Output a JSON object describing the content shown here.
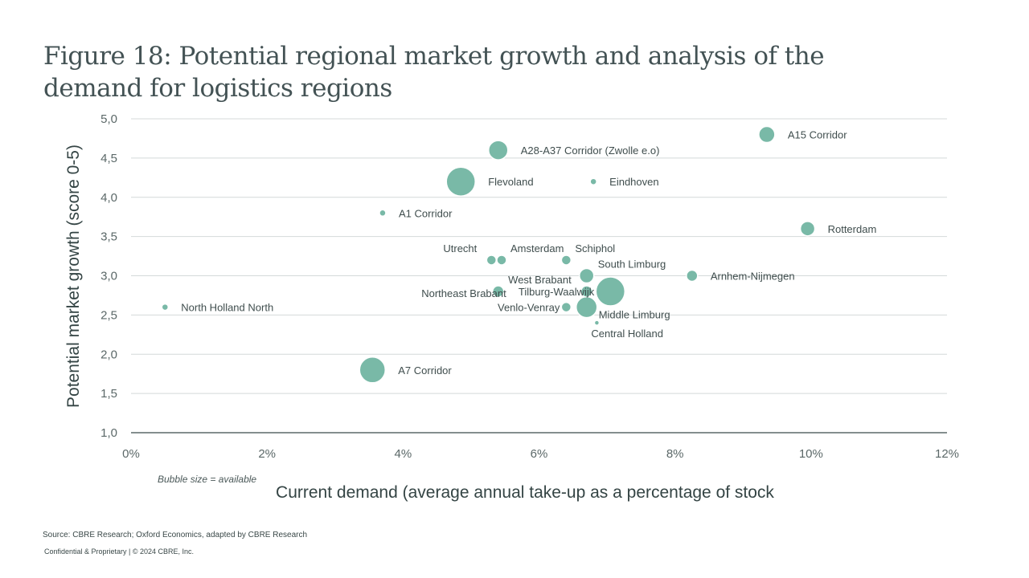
{
  "title": "Figure 18: Potential regional market growth and analysis of the demand for logistics regions",
  "bubble_note": "Bubble size = available",
  "source": "Source: CBRE Research; Oxford Economics, adapted by CBRE Research",
  "confidential": "Confidential & Proprietary | © 2024 CBRE, Inc.",
  "colors": {
    "bubble": "#79b9a7",
    "grid": "#d4d9d9",
    "axis": "#3a4a4a"
  },
  "chart_data": {
    "type": "scatter",
    "title": "Figure 18: Potential regional market growth and analysis of the demand for logistics regions",
    "xlabel": "Current demand (average annual take-up as a percentage of stock",
    "ylabel": "Potential market growth (score 0-5)",
    "xlim": [
      0,
      12
    ],
    "ylim": [
      1.0,
      5.0
    ],
    "x_ticks": [
      0,
      2,
      4,
      6,
      8,
      10,
      12
    ],
    "x_tick_labels": [
      "0%",
      "2%",
      "4%",
      "6%",
      "8%",
      "10%",
      "12%"
    ],
    "y_ticks": [
      1.0,
      1.5,
      2.0,
      2.5,
      3.0,
      3.5,
      4.0,
      4.5,
      5.0
    ],
    "y_tick_labels": [
      "1,0",
      "1,5",
      "2,0",
      "2,5",
      "3,0",
      "3,5",
      "4,0",
      "4,5",
      "5,0"
    ],
    "size_legend": "Bubble size = available",
    "points": [
      {
        "name": "A15 Corridor",
        "x": 9.35,
        "y": 4.8,
        "size": 10,
        "label_pos": "right"
      },
      {
        "name": "A28-A37 Corridor (Zwolle e.o)",
        "x": 5.4,
        "y": 4.6,
        "size": 12,
        "label_pos": "right"
      },
      {
        "name": "Flevoland",
        "x": 4.85,
        "y": 4.2,
        "size": 18,
        "label_pos": "right"
      },
      {
        "name": "Eindhoven",
        "x": 6.8,
        "y": 4.2,
        "size": 4,
        "label_pos": "right"
      },
      {
        "name": "A1 Corridor",
        "x": 3.7,
        "y": 3.8,
        "size": 4,
        "label_pos": "right"
      },
      {
        "name": "Rotterdam",
        "x": 9.95,
        "y": 3.6,
        "size": 9,
        "label_pos": "right"
      },
      {
        "name": "Utrecht",
        "x": 5.3,
        "y": 3.2,
        "size": 6,
        "label_pos": "above-left"
      },
      {
        "name": "Amsterdam",
        "x": 5.45,
        "y": 3.2,
        "size": 6,
        "label_pos": "above-right"
      },
      {
        "name": "Schiphol",
        "x": 6.4,
        "y": 3.2,
        "size": 6,
        "label_pos": "above-right"
      },
      {
        "name": "South Limburg",
        "x": 6.7,
        "y": 3.0,
        "size": 9,
        "label_pos": "above-right"
      },
      {
        "name": "Arnhem-Nijmegen",
        "x": 8.25,
        "y": 3.0,
        "size": 7,
        "label_pos": "right"
      },
      {
        "name": "West Brabant",
        "x": 6.7,
        "y": 2.8,
        "size": 7,
        "label_pos": "above-left"
      },
      {
        "name": "Northeast Brabant",
        "x": 5.4,
        "y": 2.8,
        "size": 7,
        "label_pos": "below-left"
      },
      {
        "name": "Tilburg-Waalwijk",
        "x": 7.05,
        "y": 2.8,
        "size": 18,
        "label_pos": "left"
      },
      {
        "name": "North Holland North",
        "x": 0.5,
        "y": 2.6,
        "size": 4,
        "label_pos": "right"
      },
      {
        "name": "Venlo-Venray",
        "x": 6.4,
        "y": 2.6,
        "size": 6,
        "label_pos": "left"
      },
      {
        "name": "Middle Limburg",
        "x": 6.7,
        "y": 2.6,
        "size": 13,
        "label_pos": "below-right"
      },
      {
        "name": "Central Holland",
        "x": 6.85,
        "y": 2.4,
        "size": 3,
        "label_pos": "below"
      },
      {
        "name": "A7 Corridor",
        "x": 3.55,
        "y": 1.8,
        "size": 16,
        "label_pos": "right"
      }
    ]
  }
}
